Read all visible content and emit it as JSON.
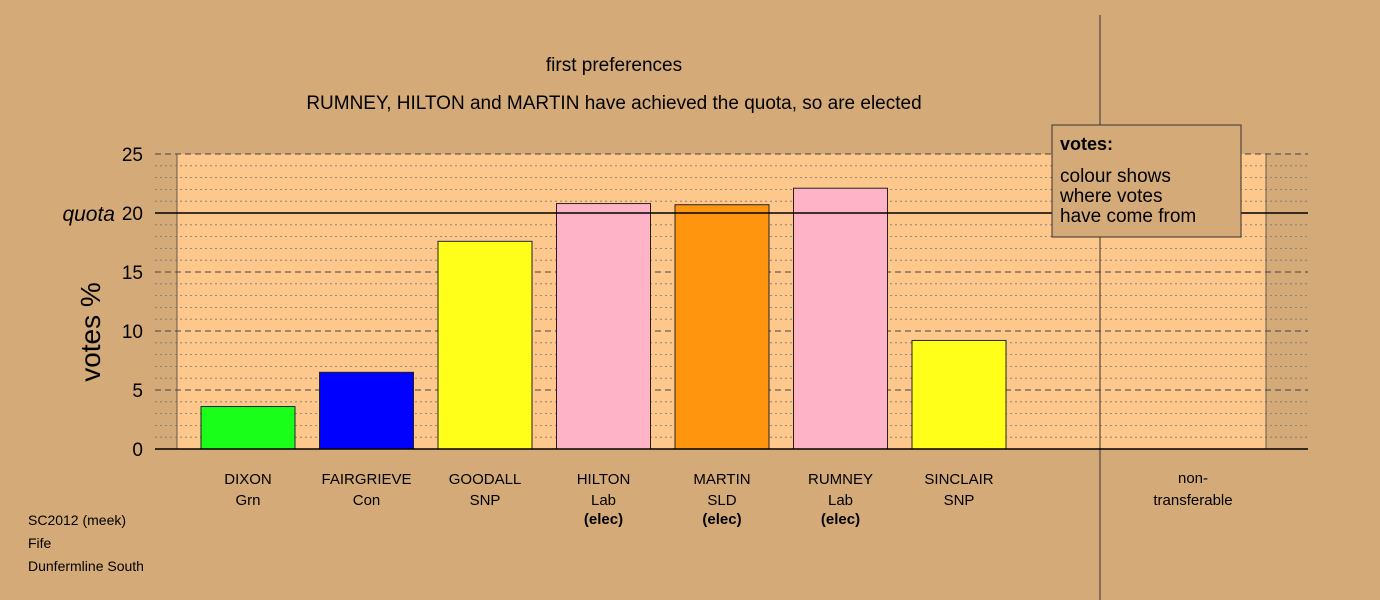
{
  "title": "first preferences",
  "subtitle": "RUMNEY, HILTON and MARTIN have achieved the quota, so are elected",
  "legend": {
    "title": "votes:",
    "lines": [
      "colour shows",
      "where votes",
      "have come from"
    ]
  },
  "footer": [
    "SC2012 (meek)",
    "Fife",
    "Dunfermline South"
  ],
  "colors": {
    "background": "#d4aa78",
    "plot_area": "#fec88d"
  },
  "chart_data": {
    "type": "bar",
    "title": "first preferences",
    "subtitle": "RUMNEY, HILTON and MARTIN have achieved the quota, so are elected",
    "ylabel": "votes %",
    "ylim": [
      0,
      25
    ],
    "yticks": [
      0,
      5,
      10,
      15,
      20,
      25
    ],
    "quota": 20,
    "quota_label": "quota",
    "grid": true,
    "legend_position": "top-right",
    "candidates": [
      {
        "name": "DIXON",
        "party": "Grn",
        "value": 3.6,
        "color": "#1aff1a",
        "elected": false
      },
      {
        "name": "FAIRGRIEVE",
        "party": "Con",
        "value": 6.5,
        "color": "#0000ff",
        "elected": false
      },
      {
        "name": "GOODALL",
        "party": "SNP",
        "value": 17.6,
        "color": "#ffff1a",
        "elected": false
      },
      {
        "name": "HILTON",
        "party": "Lab",
        "value": 20.8,
        "color": "#ffb3c6",
        "elected": true
      },
      {
        "name": "MARTIN",
        "party": "SLD",
        "value": 20.7,
        "color": "#ff950e",
        "elected": true
      },
      {
        "name": "RUMNEY",
        "party": "Lab",
        "value": 22.1,
        "color": "#ffb3c6",
        "elected": true
      },
      {
        "name": "SINCLAIR",
        "party": "SNP",
        "value": 9.2,
        "color": "#ffff1a",
        "elected": false
      }
    ],
    "elected_label": "(elec)",
    "nontransferable_label": [
      "non-",
      "transferable"
    ]
  }
}
